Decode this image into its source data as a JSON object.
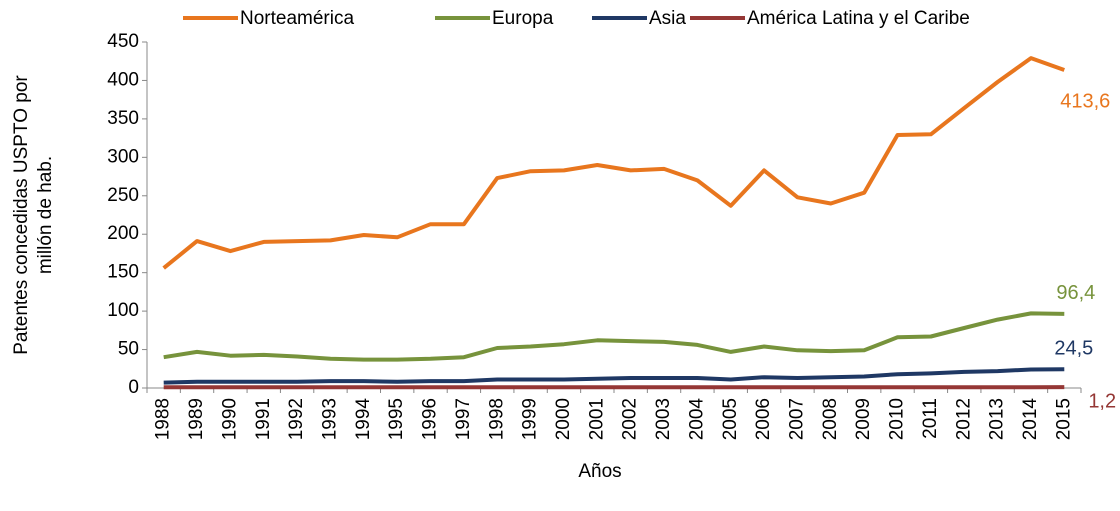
{
  "chart_data": {
    "type": "line",
    "ylabel": [
      "Patentes concedidas USPTO por",
      "millón de hab."
    ],
    "xlabel": "Años",
    "categories": [
      "1988",
      "1989",
      "1990",
      "1991",
      "1992",
      "1993",
      "1994",
      "1995",
      "1996",
      "1997",
      "1998",
      "1999",
      "2000",
      "2001",
      "2002",
      "2003",
      "2004",
      "2005",
      "2006",
      "2007",
      "2008",
      "2009",
      "2010",
      "2011",
      "2012",
      "2013",
      "2014",
      "2015"
    ],
    "series": [
      {
        "name": "Norteamérica",
        "color": "#e8761e",
        "values": [
          156,
          191,
          178,
          190,
          191,
          192,
          199,
          196,
          213,
          213,
          273,
          282,
          283,
          290,
          283,
          285,
          270,
          237,
          283,
          248,
          240,
          254,
          329,
          330,
          364,
          398,
          429,
          413.6
        ],
        "value_labels": [
          null,
          null,
          null,
          null,
          null,
          null,
          null,
          null,
          null,
          null,
          null,
          null,
          null,
          null,
          null,
          null,
          null,
          null,
          null,
          null,
          null,
          null,
          null,
          null,
          null,
          null,
          null,
          "413,6"
        ]
      },
      {
        "name": "Europa",
        "color": "#77933c",
        "values": [
          40,
          47,
          42,
          43,
          41,
          38,
          37,
          37,
          38,
          40,
          52,
          54,
          57,
          62,
          61,
          60,
          56,
          47,
          54,
          49,
          48,
          49,
          66,
          67,
          78,
          89,
          97,
          96.4
        ],
        "value_labels": [
          null,
          null,
          null,
          null,
          null,
          null,
          null,
          null,
          null,
          null,
          null,
          null,
          null,
          null,
          null,
          null,
          null,
          null,
          null,
          null,
          null,
          null,
          null,
          null,
          null,
          null,
          null,
          "96,4"
        ]
      },
      {
        "name": "Asia",
        "color": "#1f3864",
        "values": [
          7,
          8,
          8,
          8,
          8,
          9,
          9,
          8,
          9,
          9,
          11,
          11,
          11,
          12,
          13,
          13,
          13,
          11,
          14,
          13,
          14,
          15,
          18,
          19,
          21,
          22,
          24,
          24.5
        ],
        "value_labels": [
          null,
          null,
          null,
          null,
          null,
          null,
          null,
          null,
          null,
          null,
          null,
          null,
          null,
          null,
          null,
          null,
          null,
          null,
          null,
          null,
          null,
          null,
          null,
          null,
          null,
          null,
          null,
          "24,5"
        ]
      },
      {
        "name": "América Latina y el Caribe",
        "color": "#953735",
        "values": [
          1,
          1,
          1,
          1,
          1,
          1,
          1,
          1,
          1,
          1,
          1,
          1,
          1,
          1,
          1,
          1,
          1,
          1,
          1,
          1,
          1,
          1,
          1,
          1,
          1,
          1,
          1.1,
          1.2
        ],
        "value_labels": [
          null,
          null,
          null,
          null,
          null,
          null,
          null,
          null,
          null,
          null,
          null,
          null,
          null,
          null,
          null,
          null,
          null,
          null,
          null,
          null,
          null,
          null,
          null,
          null,
          null,
          null,
          null,
          "1,2"
        ]
      }
    ],
    "ylim": [
      0,
      450
    ],
    "yticks": [
      0,
      50,
      100,
      150,
      200,
      250,
      300,
      350,
      400,
      450
    ],
    "legend": "top"
  }
}
